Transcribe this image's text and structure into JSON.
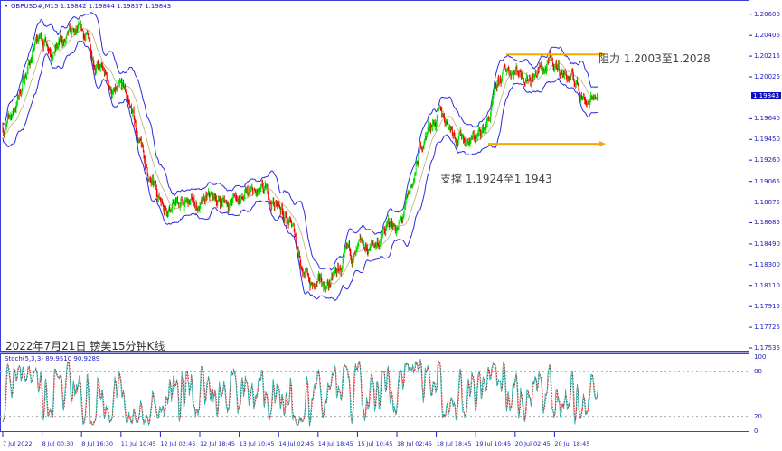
{
  "header": {
    "symbol": "GBPUSD#,M15",
    "ohlc": "1.19842 1.19844 1.19837 1.19843"
  },
  "chart_title": "2022年7月21日 镑美15分钟K线",
  "annotations": {
    "resistance": "阻力 1.2003至1.2028",
    "support": "支撑 1.1924至1.1943"
  },
  "stoch": {
    "label": "Stoch(5,3,3) 89.9510 90.9289",
    "levels": [
      "100",
      "80",
      "20",
      "0"
    ]
  },
  "colors": {
    "bull": "#00dd00",
    "bear": "#ee0000",
    "bands": "#2a2ae0",
    "arrow": "#f5a800",
    "stoch_main": "#20b2aa",
    "stoch_signal": "#e01010",
    "axis": "#2020c0"
  },
  "chart_data": {
    "type": "candlestick",
    "symbol": "GBPUSD",
    "timeframe": "M15",
    "price_axis": [
      "1.20600",
      "1.20405",
      "1.20215",
      "1.20025",
      "1.19640",
      "1.19450",
      "1.19260",
      "1.19065",
      "1.18875",
      "1.18685",
      "1.18490",
      "1.18300",
      "1.18110",
      "1.17915",
      "1.17725",
      "1.17535"
    ],
    "current_price": "1.19843",
    "time_axis": [
      "7 Jul 2022",
      "8 Jul 00:30",
      "8 Jul 16:30",
      "11 Jul 10:45",
      "12 Jul 02:45",
      "12 Jul 18:45",
      "13 Jul 10:45",
      "14 Jul 02:45",
      "14 Jul 18:45",
      "15 Jul 10:45",
      "18 Jul 02:45",
      "18 Jul 18:45",
      "19 Jul 10:45",
      "20 Jul 02:45",
      "20 Jul 18:45"
    ],
    "approx_close_at_time_labels": [
      1.1957,
      1.2036,
      1.2032,
      1.1982,
      1.189,
      1.1882,
      1.189,
      1.1882,
      1.1807,
      1.1832,
      1.1865,
      1.1965,
      1.1948,
      1.2011,
      1.2011
    ],
    "last_close": 1.19843,
    "resistance_zone": [
      1.2003,
      1.2028
    ],
    "support_zone": [
      1.1924,
      1.1943
    ],
    "ylim": [
      1.17535,
      1.206
    ]
  }
}
